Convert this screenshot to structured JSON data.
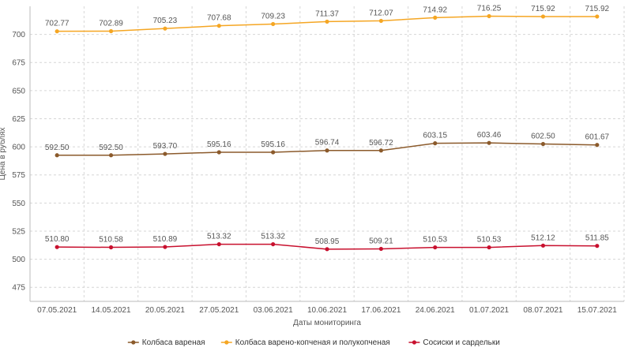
{
  "chart_data": {
    "type": "line",
    "xlabel": "Даты мониторинга",
    "ylabel": "Цена в рублях",
    "ylim": [
      462.5,
      725
    ],
    "yticks": [
      475,
      500,
      525,
      550,
      575,
      600,
      625,
      650,
      675,
      700
    ],
    "grid": true,
    "legend_position": "bottom",
    "categories": [
      "07.05.2021",
      "14.05.2021",
      "20.05.2021",
      "27.05.2021",
      "03.06.2021",
      "10.06.2021",
      "17.06.2021",
      "24.06.2021",
      "01.07.2021",
      "08.07.2021",
      "15.07.2021"
    ],
    "series": [
      {
        "name": "Колбаса вареная",
        "color": "#8b5a2b",
        "values": [
          592.5,
          592.5,
          593.7,
          595.16,
          595.16,
          596.74,
          596.72,
          603.15,
          603.46,
          602.5,
          601.67
        ],
        "labels": [
          "592.50",
          "592.50",
          "593.70",
          "595.16",
          "595.16",
          "596.74",
          "596.72",
          "603.15",
          "603.46",
          "602.50",
          "601.67"
        ]
      },
      {
        "name": "Колбаса варено-копченая и полукопченая",
        "color": "#f5a623",
        "values": [
          702.77,
          702.89,
          705.23,
          707.68,
          709.23,
          711.37,
          712.07,
          714.92,
          716.25,
          715.92,
          715.92
        ],
        "labels": [
          "702.77",
          "702.89",
          "705.23",
          "707.68",
          "709.23",
          "711.37",
          "712.07",
          "714.92",
          "716.25",
          "715.92",
          "715.92"
        ]
      },
      {
        "name": "Сосиски и сардельки",
        "color": "#c8102e",
        "values": [
          510.8,
          510.58,
          510.89,
          513.32,
          513.32,
          508.95,
          509.21,
          510.53,
          510.53,
          512.12,
          511.85
        ],
        "labels": [
          "510.80",
          "510.58",
          "510.89",
          "513.32",
          "513.32",
          "508.95",
          "509.21",
          "510.53",
          "510.53",
          "512.12",
          "511.85"
        ]
      }
    ]
  }
}
